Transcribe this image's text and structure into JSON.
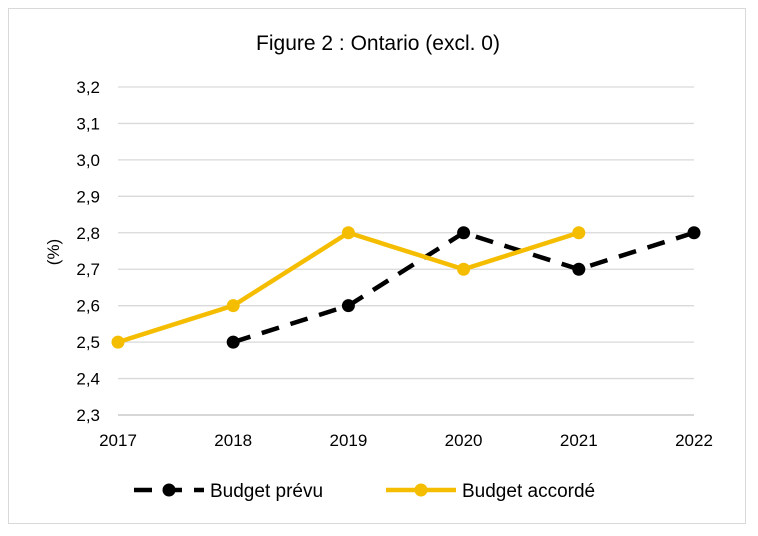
{
  "chart_data": {
    "type": "line",
    "title": "Figure 2 : Ontario (excl. 0)",
    "xlabel": "",
    "ylabel": "(%)",
    "categories": [
      "2017",
      "2018",
      "2019",
      "2020",
      "2021",
      "2022"
    ],
    "ylim": [
      2.3,
      3.2
    ],
    "yticks": [
      "2,3",
      "2,4",
      "2,5",
      "2,6",
      "2,7",
      "2,8",
      "2,9",
      "3,0",
      "3,1",
      "3,2"
    ],
    "grid": true,
    "legend_position": "bottom",
    "series": [
      {
        "name": "Budget prévu",
        "color": "#000000",
        "dashed": true,
        "values": [
          null,
          2.5,
          2.6,
          2.8,
          2.7,
          2.8
        ]
      },
      {
        "name": "Budget accordé",
        "color": "#F5BD00",
        "dashed": false,
        "values": [
          2.5,
          2.6,
          2.8,
          2.7,
          2.8,
          null
        ]
      }
    ]
  }
}
